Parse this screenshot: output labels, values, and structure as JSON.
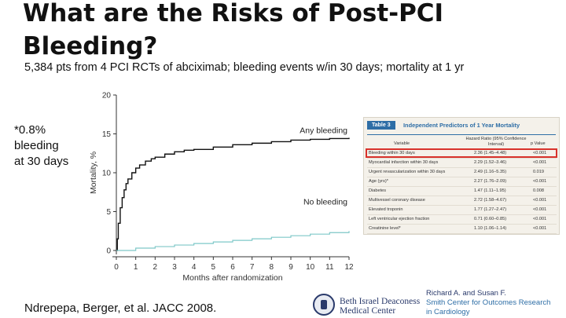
{
  "slide": {
    "title": "What are the Risks of Post-PCI Bleeding?",
    "subtitle": "5,384 pts from 4 PCI RCTs of abciximab; bleeding events w/in 30 days; mortality at 1 yr",
    "note_lines": [
      "*0.8%",
      "bleeding",
      "at 30 days"
    ],
    "citation": "Ndrepepa, Berger, et al. JACC 2008.",
    "institution": {
      "line1": "Beth Israel Deaconess",
      "line2": "Medical Center",
      "center_line1": "Richard A. and Susan F.",
      "center_line2": "Smith Center for Outcomes Research",
      "center_line3": "in Cardiology"
    }
  },
  "colors": {
    "any_bleeding": "#111111",
    "no_bleeding": "#7fc8c8",
    "table_accent": "#2e6ea6",
    "highlight_box": "#d8322b",
    "table_bg": "#f4f1ea",
    "institution": "#2a3a6b"
  },
  "chart_data": [
    {
      "type": "line",
      "xlabel": "Months after randomization",
      "ylabel": "Mortality, %",
      "xlim": [
        0,
        12
      ],
      "ylim": [
        0,
        20
      ],
      "x_ticks": [
        "0",
        "1",
        "2",
        "3",
        "4",
        "5",
        "6",
        "7",
        "8",
        "9",
        "10",
        "11",
        "12"
      ],
      "y_ticks": [
        "0",
        "5",
        "10",
        "15",
        "20"
      ],
      "series": [
        {
          "name": "Any bleeding",
          "x": [
            0,
            0.05,
            0.1,
            0.2,
            0.3,
            0.4,
            0.5,
            0.6,
            0.8,
            1.0,
            1.2,
            1.5,
            1.8,
            2.0,
            2.5,
            3.0,
            3.5,
            4.0,
            5.0,
            6.0,
            7.0,
            8.0,
            9.0,
            10.0,
            11.0,
            12.0
          ],
          "y": [
            0,
            1.5,
            3.5,
            5.5,
            6.8,
            7.8,
            8.6,
            9.2,
            10.0,
            10.6,
            11.0,
            11.5,
            11.8,
            12.0,
            12.4,
            12.7,
            12.9,
            13.0,
            13.3,
            13.6,
            13.8,
            14.0,
            14.2,
            14.3,
            14.4,
            14.5
          ]
        },
        {
          "name": "No bleeding",
          "x": [
            0,
            1,
            2,
            3,
            4,
            5,
            6,
            7,
            8,
            9,
            10,
            11,
            12
          ],
          "y": [
            0,
            0.3,
            0.5,
            0.7,
            0.9,
            1.1,
            1.3,
            1.5,
            1.7,
            1.9,
            2.1,
            2.3,
            2.5
          ]
        }
      ]
    },
    {
      "type": "table",
      "badge": "Table 3",
      "title": "Independent Predictors of 1 Year Mortality",
      "columns": [
        "Variable",
        "Hazard Ratio (95% Confidence Interval)",
        "p Value"
      ],
      "rows": [
        [
          "Bleeding within 30 days",
          "2.36 (1.45–4.48)",
          "<0.001"
        ],
        [
          "Myocardial infarction within 30 days",
          "2.29 (1.52–3.46)",
          "<0.001"
        ],
        [
          "Urgent revascularization within 30 days",
          "2.49 (1.16–5.35)",
          "0.019"
        ],
        [
          "Age (yrs)*",
          "2.27 (1.76–2.09)",
          "<0.001"
        ],
        [
          "Diabetes",
          "1.47 (1.11–1.95)",
          "0.008"
        ],
        [
          "Multivessel coronary disease",
          "2.72 (1.58–4.67)",
          "<0.001"
        ],
        [
          "Elevated troponin",
          "1.77 (1.27–2.47)",
          "<0.001"
        ],
        [
          "Left ventricular ejection fraction",
          "0.71 (0.60–0.85)",
          "<0.001"
        ],
        [
          "Creatinine level*",
          "1.10 (1.06–1.14)",
          "<0.001"
        ]
      ]
    }
  ]
}
